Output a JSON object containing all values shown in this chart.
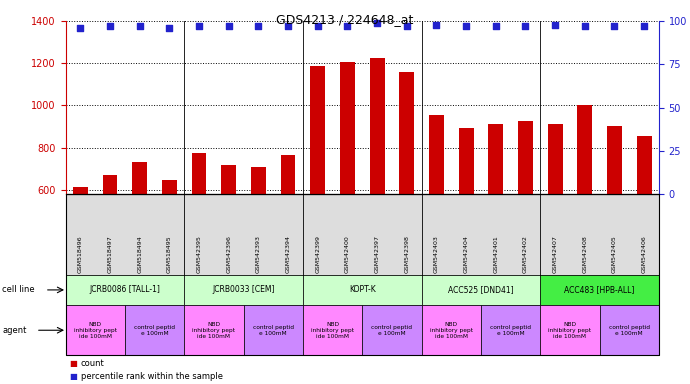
{
  "title": "GDS4213 / 224648_at",
  "samples": [
    "GSM518496",
    "GSM518497",
    "GSM518494",
    "GSM518495",
    "GSM542395",
    "GSM542396",
    "GSM542393",
    "GSM542394",
    "GSM542399",
    "GSM542400",
    "GSM542397",
    "GSM542398",
    "GSM542403",
    "GSM542404",
    "GSM542401",
    "GSM542402",
    "GSM542407",
    "GSM542408",
    "GSM542405",
    "GSM542406"
  ],
  "bar_values": [
    615,
    670,
    730,
    645,
    775,
    715,
    710,
    765,
    1185,
    1205,
    1225,
    1160,
    955,
    895,
    910,
    925,
    910,
    1000,
    900,
    855
  ],
  "dot_values": [
    96,
    97,
    97,
    96,
    97,
    97,
    97,
    97,
    97,
    97,
    99,
    97,
    98,
    97,
    97,
    97,
    98,
    97,
    97,
    97
  ],
  "ylim_left": [
    580,
    1400
  ],
  "ylim_right": [
    0,
    100
  ],
  "yticks_left": [
    600,
    800,
    1000,
    1200,
    1400
  ],
  "yticks_right": [
    0,
    25,
    50,
    75,
    100
  ],
  "bar_color": "#cc0000",
  "dot_color": "#2222cc",
  "cell_lines": [
    {
      "label": "JCRB0086 [TALL-1]",
      "start": 0,
      "end": 4,
      "color": "#ccffcc"
    },
    {
      "label": "JCRB0033 [CEM]",
      "start": 4,
      "end": 8,
      "color": "#ccffcc"
    },
    {
      "label": "KOPT-K",
      "start": 8,
      "end": 12,
      "color": "#ccffcc"
    },
    {
      "label": "ACC525 [DND41]",
      "start": 12,
      "end": 16,
      "color": "#ccffcc"
    },
    {
      "label": "ACC483 [HPB-ALL]",
      "start": 16,
      "end": 20,
      "color": "#44ee44"
    }
  ],
  "agents": [
    {
      "label": "NBD\ninhibitory pept\nide 100mM",
      "start": 0,
      "end": 2,
      "color": "#ff88ff"
    },
    {
      "label": "control peptid\ne 100mM",
      "start": 2,
      "end": 4,
      "color": "#cc88ff"
    },
    {
      "label": "NBD\ninhibitory pept\nide 100mM",
      "start": 4,
      "end": 6,
      "color": "#ff88ff"
    },
    {
      "label": "control peptid\ne 100mM",
      "start": 6,
      "end": 8,
      "color": "#cc88ff"
    },
    {
      "label": "NBD\ninhibitory pept\nide 100mM",
      "start": 8,
      "end": 10,
      "color": "#ff88ff"
    },
    {
      "label": "control peptid\ne 100mM",
      "start": 10,
      "end": 12,
      "color": "#cc88ff"
    },
    {
      "label": "NBD\ninhibitory pept\nide 100mM",
      "start": 12,
      "end": 14,
      "color": "#ff88ff"
    },
    {
      "label": "control peptid\ne 100mM",
      "start": 14,
      "end": 16,
      "color": "#cc88ff"
    },
    {
      "label": "NBD\ninhibitory pept\nide 100mM",
      "start": 16,
      "end": 18,
      "color": "#ff88ff"
    },
    {
      "label": "control peptid\ne 100mM",
      "start": 18,
      "end": 20,
      "color": "#cc88ff"
    }
  ],
  "legend_count_color": "#cc0000",
  "legend_dot_color": "#2222cc",
  "cell_line_row_label": "cell line",
  "agent_row_label": "agent",
  "legend_count": "count",
  "legend_percentile": "percentile rank within the sample",
  "background_color": "#ffffff",
  "tick_label_color_left": "#cc0000",
  "tick_label_color_right": "#2222cc",
  "sample_label_bg": "#dddddd",
  "chart_bg": "#ffffff"
}
